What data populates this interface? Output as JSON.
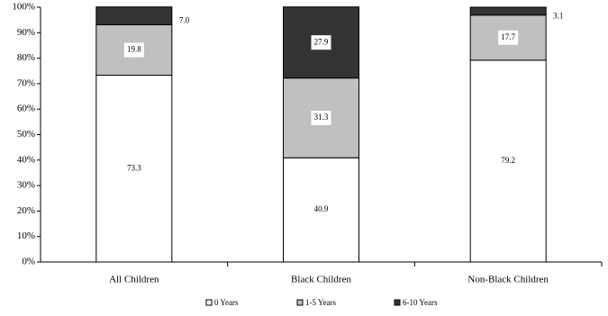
{
  "chart_data": {
    "type": "stacked_bar",
    "categories": [
      "All Children",
      "Black Children",
      "Non-Black Children"
    ],
    "series": [
      {
        "name": "0 Years",
        "color": "#ffffff",
        "values": [
          73.3,
          40.9,
          79.2
        ],
        "value_labels": [
          "73.3",
          "40.9",
          "79.2"
        ]
      },
      {
        "name": "1-5 Years",
        "color": "#c0c0c0",
        "values": [
          19.8,
          31.3,
          17.7
        ],
        "value_labels": [
          "19.8",
          "31.3",
          "17.7"
        ]
      },
      {
        "name": "6-10 Years",
        "color": "#333333",
        "values": [
          7,
          27.9,
          3.1
        ],
        "value_labels": [
          "7.0",
          "27.9",
          "3.1"
        ]
      }
    ],
    "ylim": [
      0,
      100
    ],
    "yticks": [
      {
        "value": 0,
        "label": "0%"
      },
      {
        "value": 10,
        "label": "10%"
      },
      {
        "value": 20,
        "label": "20%"
      },
      {
        "value": 30,
        "label": "30%"
      },
      {
        "value": 40,
        "label": "40%"
      },
      {
        "value": 50,
        "label": "50%"
      },
      {
        "value": 60,
        "label": "60%"
      },
      {
        "value": 70,
        "label": "70%"
      },
      {
        "value": 80,
        "label": "80%"
      },
      {
        "value": 90,
        "label": "90%"
      },
      {
        "value": 100,
        "label": "100%"
      }
    ],
    "legend": "bottom"
  }
}
